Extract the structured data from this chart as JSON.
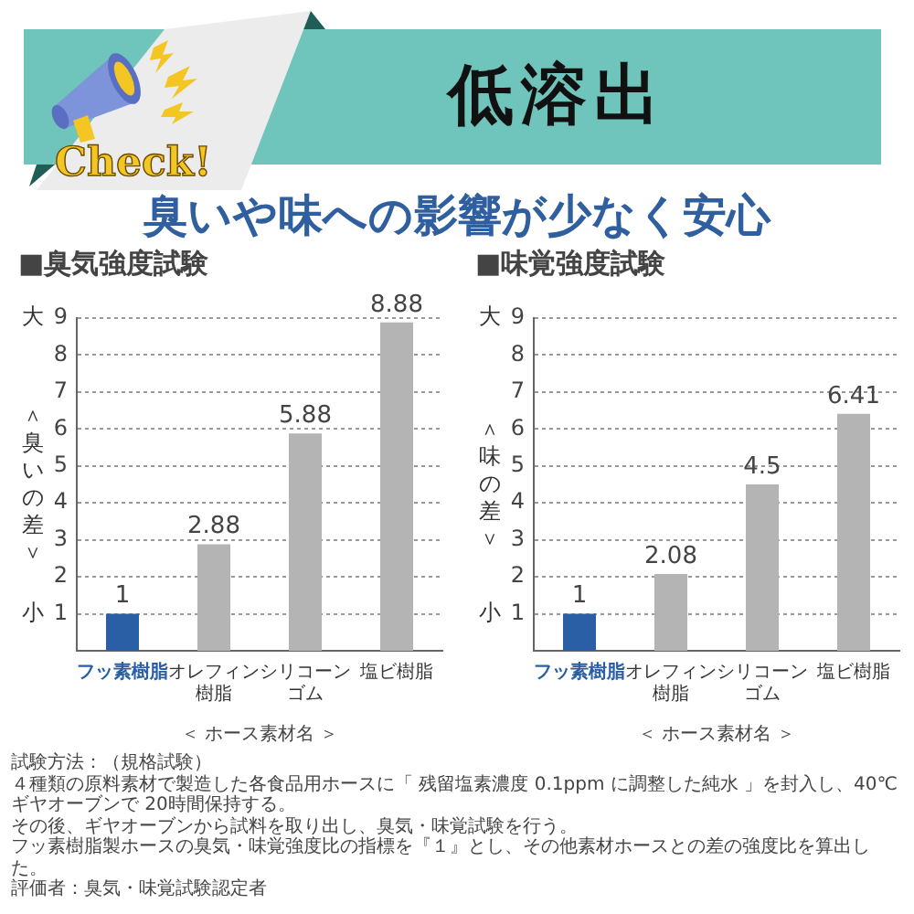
{
  "chart_data": [
    {
      "type": "other",
      "title": "低溶出",
      "subtitle": "臭いや味への影響が少なく安心",
      "annotations": [
        "Check!"
      ]
    },
    {
      "type": "bar",
      "title": "■臭気強度試験",
      "categories": [
        "フッ素樹脂",
        "オレフィン樹脂",
        "シリコーンゴム",
        "塩ビ樹脂"
      ],
      "values": [
        1,
        2.88,
        5.88,
        8.88
      ],
      "colors": [
        "#2b5fa5",
        "#b4b4b4",
        "#b4b4b4",
        "#b4b4b4"
      ],
      "xlabel": "＜ ホース素材名 ＞",
      "ylabel": "＜臭いの差＞",
      "ylim": [
        0,
        9
      ],
      "yticks": [
        1,
        2,
        3,
        4,
        5,
        6,
        7,
        8,
        9
      ],
      "grid": "y",
      "data_labels": true,
      "annotations": [
        "大",
        "小"
      ]
    },
    {
      "type": "bar",
      "title": "■味覚強度試験",
      "categories": [
        "フッ素樹脂",
        "オレフィン樹脂",
        "シリコーンゴム",
        "塩ビ樹脂"
      ],
      "values": [
        1,
        2.08,
        4.5,
        6.41
      ],
      "colors": [
        "#2b5fa5",
        "#b4b4b4",
        "#b4b4b4",
        "#b4b4b4"
      ],
      "xlabel": "＜ ホース素材名 ＞",
      "ylabel": "＜味の差＞",
      "ylim": [
        0,
        9
      ],
      "yticks": [
        1,
        2,
        3,
        4,
        5,
        6,
        7,
        8,
        9
      ],
      "grid": "y",
      "data_labels": true,
      "annotations": [
        "大",
        "小"
      ]
    },
    {
      "type": "other",
      "annotations": [
        "試験方法：（規格試験）",
        "４種類の原料素材で製造した各食品用ホースに「 残留塩素濃度 0.1ppm に調整した純水 」を封入し、40℃ギヤオーブンで 20時間保持する。",
        "その後、ギヤオーブンから試料を取り出し、臭気・味覚試験を行う。",
        "フッ素樹脂製ホースの臭気・味覚強度比の指標を『１』とし、その他素材ホースとの差の強度比を算出した。",
        "評価者：臭気・味覚試験認定者"
      ]
    }
  ]
}
